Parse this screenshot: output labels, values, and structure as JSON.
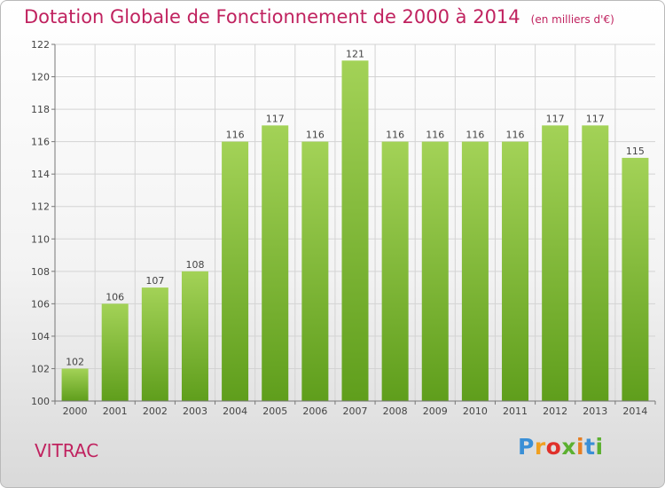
{
  "header": {
    "title": "Dotation Globale de Fonctionnement de 2000 à 2014",
    "subtitle": "(en milliers d'€)"
  },
  "place": "VITRAC",
  "logo": {
    "text": "Proxiti",
    "letters": [
      "P",
      "r",
      "o",
      "x",
      "i",
      "t",
      "i"
    ]
  },
  "colors": {
    "bar_top": "#a3d257",
    "bar_bottom": "#5f9e1c",
    "title": "#c0225f",
    "grid": "#d3d3d3"
  },
  "chart_data": {
    "type": "bar",
    "title": "Dotation Globale de Fonctionnement de 2000 à 2014",
    "subtitle": "(en milliers d'€)",
    "categories": [
      "2000",
      "2001",
      "2002",
      "2003",
      "2004",
      "2005",
      "2006",
      "2007",
      "2008",
      "2009",
      "2010",
      "2011",
      "2012",
      "2013",
      "2014"
    ],
    "values": [
      102,
      106,
      107,
      108,
      116,
      117,
      116,
      121,
      116,
      116,
      116,
      116,
      117,
      117,
      115
    ],
    "ylim": [
      100,
      122
    ],
    "yticks": [
      100,
      102,
      104,
      106,
      108,
      110,
      112,
      114,
      116,
      118,
      120,
      122
    ],
    "grid": true,
    "data_labels": true
  }
}
